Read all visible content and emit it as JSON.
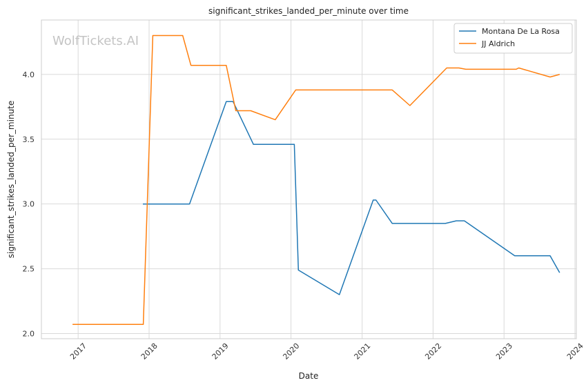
{
  "watermark": "WolfTickets.AI",
  "chart_data": {
    "type": "line",
    "title": "significant_strikes_landed_per_minute over time",
    "xlabel": "Date",
    "ylabel": "significant_strikes_landed_per_minute",
    "x_axis": "date",
    "xlim": [
      "2016-06-26",
      "2024-01-08"
    ],
    "ylim": [
      1.96,
      4.42
    ],
    "xticks": [
      "2017",
      "2018",
      "2019",
      "2020",
      "2021",
      "2022",
      "2023",
      "2024"
    ],
    "yticks": [
      "2.0",
      "2.5",
      "3.0",
      "3.5",
      "4.0"
    ],
    "grid": true,
    "legend_position": "top-right",
    "series": [
      {
        "name": "Montana De La Rosa",
        "color": "#1f77b4",
        "points": [
          [
            "2017-11-30",
            3.0
          ],
          [
            "2018-07-28",
            3.0
          ],
          [
            "2019-02-02",
            3.79
          ],
          [
            "2019-03-09",
            3.79
          ],
          [
            "2019-06-22",
            3.46
          ],
          [
            "2020-01-18",
            3.46
          ],
          [
            "2020-02-08",
            2.49
          ],
          [
            "2020-09-06",
            2.3
          ],
          [
            "2021-02-27",
            3.03
          ],
          [
            "2021-03-13",
            3.03
          ],
          [
            "2021-06-05",
            2.85
          ],
          [
            "2022-03-05",
            2.85
          ],
          [
            "2022-04-30",
            2.87
          ],
          [
            "2022-06-11",
            2.87
          ],
          [
            "2023-02-25",
            2.6
          ],
          [
            "2023-08-26",
            2.6
          ],
          [
            "2023-10-14",
            2.47
          ]
        ]
      },
      {
        "name": "JJ Aldrich",
        "color": "#ff7f0e",
        "points": [
          [
            "2016-12-03",
            2.07
          ],
          [
            "2017-12-02",
            2.07
          ],
          [
            "2018-01-20",
            4.3
          ],
          [
            "2018-06-23",
            4.3
          ],
          [
            "2018-08-04",
            4.07
          ],
          [
            "2019-02-02",
            4.07
          ],
          [
            "2019-03-23",
            3.72
          ],
          [
            "2019-06-08",
            3.72
          ],
          [
            "2019-10-12",
            3.65
          ],
          [
            "2020-01-25",
            3.88
          ],
          [
            "2021-02-20",
            3.88
          ],
          [
            "2021-03-06",
            3.88
          ],
          [
            "2021-06-05",
            3.88
          ],
          [
            "2021-09-04",
            3.76
          ],
          [
            "2022-03-12",
            4.05
          ],
          [
            "2022-05-14",
            4.05
          ],
          [
            "2022-06-18",
            4.04
          ],
          [
            "2023-03-04",
            4.04
          ],
          [
            "2023-03-18",
            4.05
          ],
          [
            "2023-08-26",
            3.98
          ],
          [
            "2023-10-14",
            4.0
          ]
        ]
      }
    ]
  }
}
